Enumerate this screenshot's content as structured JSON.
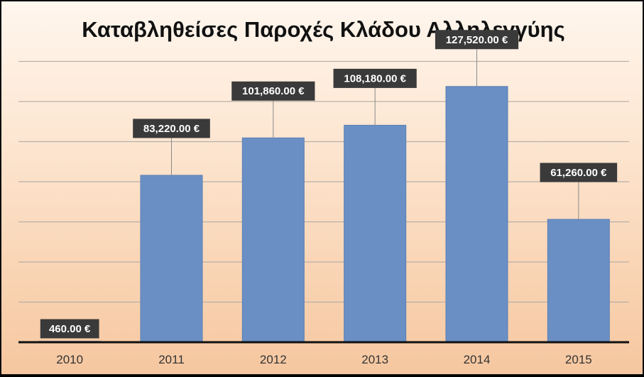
{
  "chart_data": {
    "type": "bar",
    "title": "Καταβληθείσες Παροχές Κλάδου Αλληλεγγύης",
    "categories": [
      "2010",
      "2011",
      "2012",
      "2013",
      "2014",
      "2015"
    ],
    "values": [
      460,
      83220,
      101860,
      108180,
      127520,
      61260
    ],
    "data_labels": [
      "460.00 €",
      "83,220.00 €",
      "101,860.00 €",
      "108,180.00 €",
      "127,520.00 €",
      "61,260.00 €"
    ],
    "xlabel": "",
    "ylabel": "",
    "ylim": [
      0,
      140000
    ],
    "grid": true,
    "legend": "none",
    "colors": {
      "bar": "#6a8fc4",
      "bar_border": "#5a7fb6",
      "label_box": "#3a3a3a",
      "label_text": "#ffffff",
      "gridline": "#b8b0a8",
      "axis": "#111111",
      "background_top": "#fff6ee",
      "background_bottom": "#f6c7a0"
    }
  }
}
